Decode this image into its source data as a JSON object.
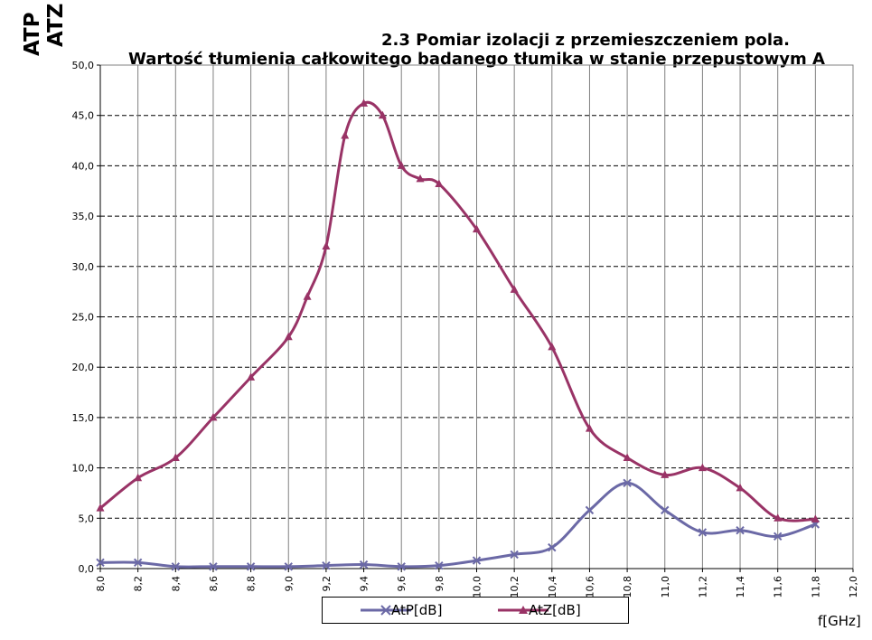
{
  "chart_data": {
    "type": "line",
    "title": "2.3 Pomiar izolacji z przemieszczeniem pola.",
    "subtitle": "Wartość tłumienia całkowitego badanego tłumika w stanie przepustowym A",
    "ylabel_lines": [
      "ATP",
      "ATZ"
    ],
    "xlabel": "f[GHz]",
    "xlim": [
      8.0,
      12.0
    ],
    "ylim": [
      0.0,
      50.0
    ],
    "x_ticks": [
      "8,0",
      "8,2",
      "8,4",
      "8,6",
      "8,8",
      "9,0",
      "9,2",
      "9,4",
      "9,6",
      "9,8",
      "10,0",
      "10,2",
      "10,4",
      "10,6",
      "10,8",
      "11,0",
      "11,2",
      "11,4",
      "11,6",
      "11,8",
      "12,0"
    ],
    "y_ticks": [
      "0,0",
      "5,0",
      "10,0",
      "15,0",
      "20,0",
      "25,0",
      "30,0",
      "35,0",
      "40,0",
      "45,0",
      "50,0"
    ],
    "grid": {
      "vertical": true,
      "horizontal_dashed": true
    },
    "legend_position": "bottom",
    "series": [
      {
        "name": "AtP[dB]",
        "color": "#6b69a6",
        "marker": "x",
        "points": [
          [
            8.0,
            0.6
          ],
          [
            8.2,
            0.6
          ],
          [
            8.4,
            0.2
          ],
          [
            8.6,
            0.2
          ],
          [
            8.8,
            0.2
          ],
          [
            9.0,
            0.2
          ],
          [
            9.2,
            0.3
          ],
          [
            9.4,
            0.4
          ],
          [
            9.6,
            0.2
          ],
          [
            9.8,
            0.3
          ],
          [
            10.0,
            0.8
          ],
          [
            10.2,
            1.4
          ],
          [
            10.4,
            2.1
          ],
          [
            10.6,
            5.8
          ],
          [
            10.8,
            8.5
          ],
          [
            11.0,
            5.8
          ],
          [
            11.2,
            3.6
          ],
          [
            11.4,
            3.8
          ],
          [
            11.6,
            3.2
          ],
          [
            11.8,
            4.4
          ]
        ]
      },
      {
        "name": "AtZ[dB]",
        "color": "#993366",
        "marker": "triangle",
        "points": [
          [
            8.0,
            6.0
          ],
          [
            8.2,
            9.0
          ],
          [
            8.4,
            11.0
          ],
          [
            8.6,
            15.0
          ],
          [
            8.8,
            19.0
          ],
          [
            9.0,
            23.0
          ],
          [
            9.1,
            27.0
          ],
          [
            9.2,
            32.0
          ],
          [
            9.3,
            43.0
          ],
          [
            9.4,
            46.2
          ],
          [
            9.5,
            45.0
          ],
          [
            9.6,
            40.0
          ],
          [
            9.7,
            38.7
          ],
          [
            9.8,
            38.2
          ],
          [
            10.0,
            33.7
          ],
          [
            10.2,
            27.7
          ],
          [
            10.4,
            22.0
          ],
          [
            10.6,
            13.9
          ],
          [
            10.8,
            11.0
          ],
          [
            11.0,
            9.3
          ],
          [
            11.2,
            10.0
          ],
          [
            11.4,
            8.0
          ],
          [
            11.6,
            5.0
          ],
          [
            11.8,
            4.9
          ]
        ]
      }
    ]
  }
}
